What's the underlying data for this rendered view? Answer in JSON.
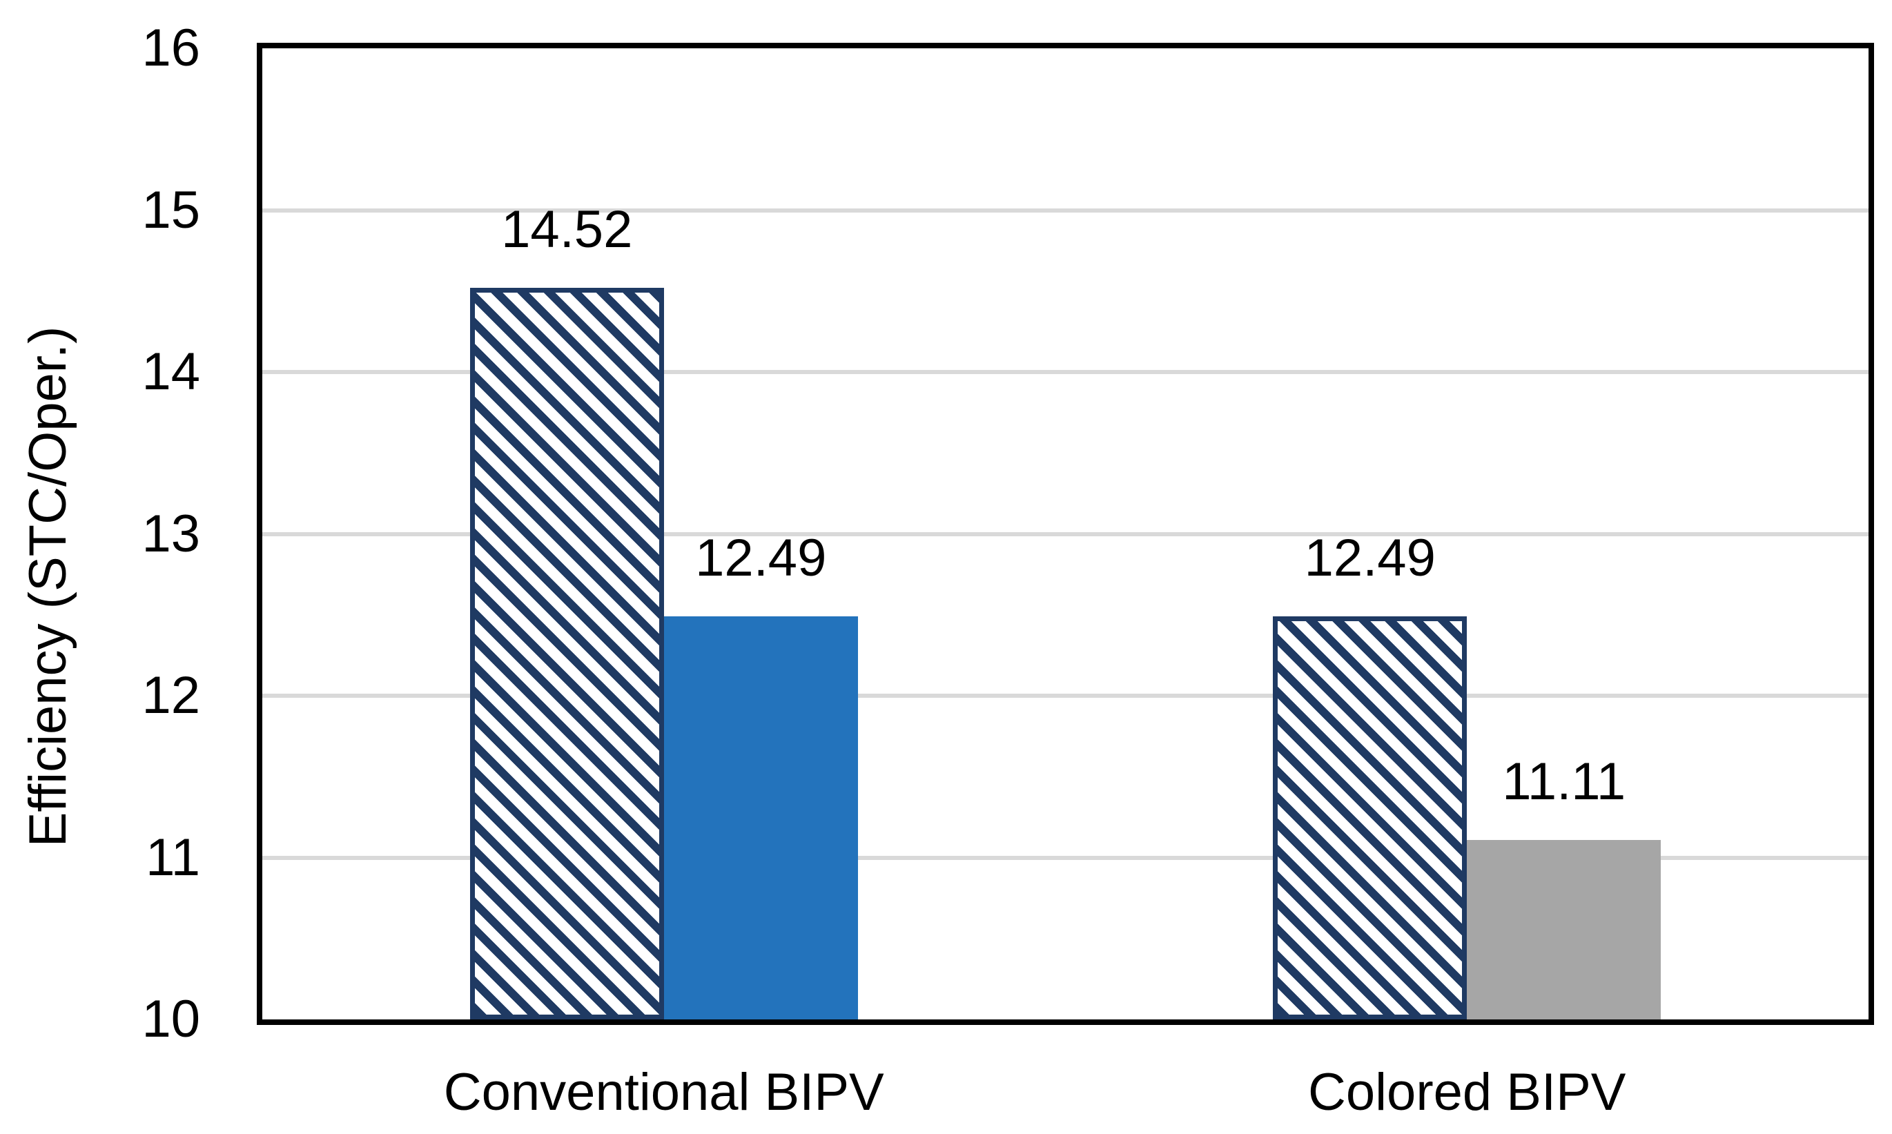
{
  "page": {
    "background": "#FFFFFF"
  },
  "chart_data": {
    "type": "bar",
    "title": "",
    "categories": [
      "Conventional BIPV",
      "Colored BIPV"
    ],
    "series": [
      {
        "name": "STC",
        "pattern": "diagonal-hatch",
        "hatch_color": "#1F3A63",
        "hatch_background": "#FFFFFF",
        "values": [
          14.52,
          12.49
        ],
        "labels": [
          "14.52",
          "12.49"
        ]
      },
      {
        "name": "Oper.",
        "pattern": "solid",
        "point_colors": [
          "#2373BC",
          "#A6A6A6"
        ],
        "values": [
          12.49,
          11.11
        ],
        "labels": [
          "12.49",
          "11.11"
        ]
      }
    ],
    "xlabel": "",
    "ylabel": "Efficiency (STC/Oper.)",
    "ylim": [
      10,
      16
    ],
    "ytick_labels": [
      "10",
      "11",
      "12",
      "13",
      "14",
      "15",
      "16"
    ],
    "grid": true,
    "gridline_color": "#D9D9D9",
    "axis_border_color": "#000000",
    "text_color": "#000000",
    "legend": "none"
  }
}
